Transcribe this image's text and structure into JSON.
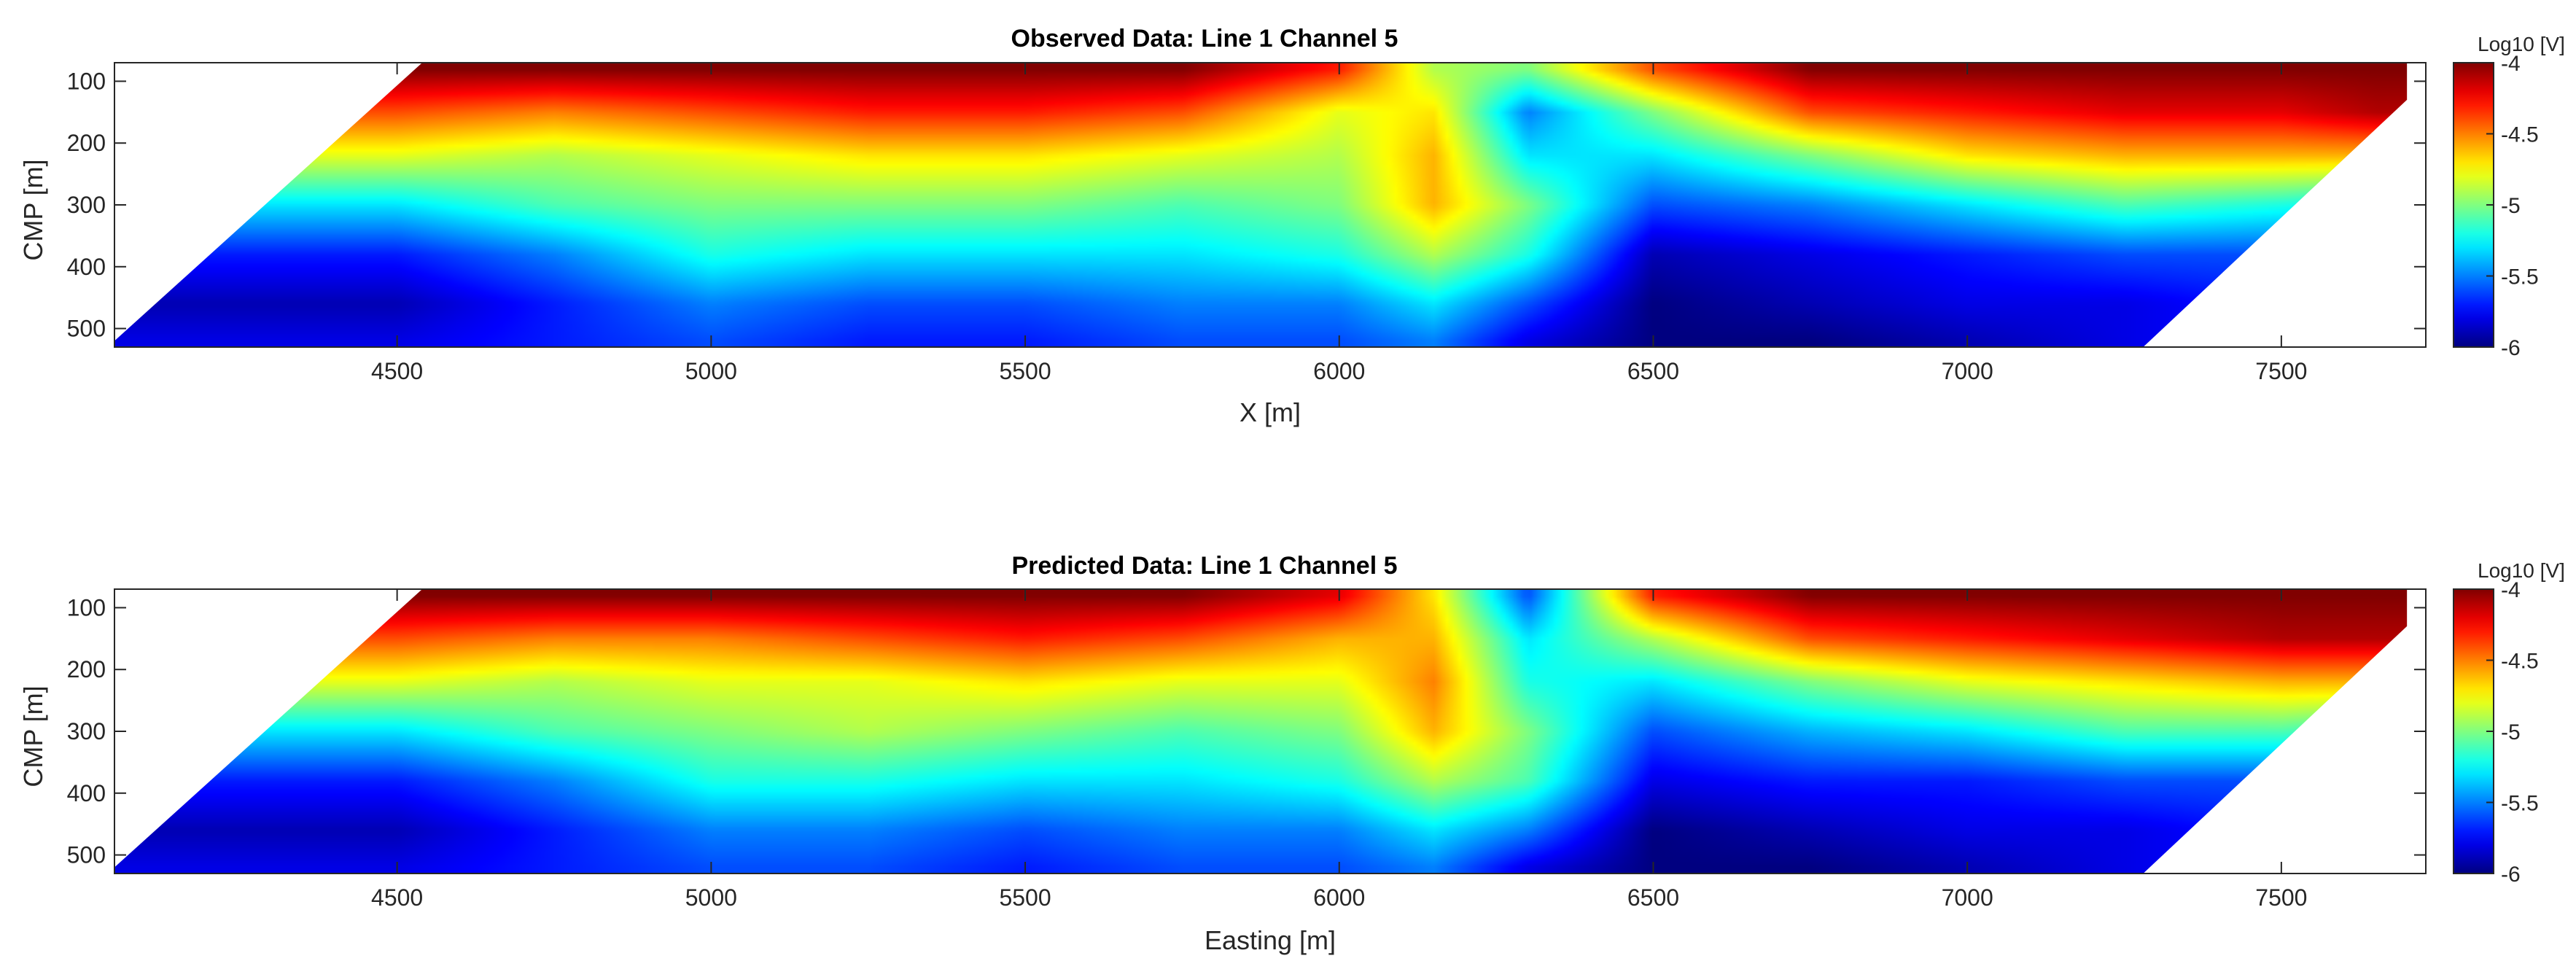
{
  "chart_data": [
    {
      "type": "heatmap",
      "title": "Observed Data: Line 1 Channel 5",
      "xlabel": "X [m]",
      "ylabel": "CMP [m]",
      "xlim": [
        4050,
        7730
      ],
      "ylim": [
        530,
        70
      ],
      "x_ticks": [
        "4500",
        "5000",
        "5500",
        "6000",
        "6500",
        "7000",
        "7500"
      ],
      "y_ticks": [
        "100",
        "200",
        "300",
        "400",
        "500"
      ],
      "colorbar": {
        "label": "Log10 [V]",
        "ticks": [
          "-4",
          "-4.5",
          "-5",
          "-5.5",
          "-6"
        ],
        "range": [
          -6,
          -4
        ],
        "colormap": "jet"
      },
      "x": [
        4500,
        4750,
        5000,
        5250,
        5500,
        5750,
        6000,
        6150,
        6300,
        6500,
        6750,
        7000,
        7250,
        7500,
        7650
      ],
      "y": [
        80,
        150,
        220,
        300,
        380,
        460,
        520
      ],
      "z": [
        [
          -4.0,
          -4.0,
          -4.0,
          -4.0,
          -4.0,
          -4.0,
          -4.3,
          -4.9,
          -5.0,
          -4.4,
          -4.0,
          -4.0,
          -4.0,
          -4.0,
          -4.0
        ],
        [
          -4.4,
          -4.5,
          -4.4,
          -4.3,
          -4.3,
          -4.4,
          -4.8,
          -4.7,
          -5.5,
          -5.0,
          -4.4,
          -4.3,
          -4.2,
          -4.2,
          -4.1
        ],
        [
          -4.8,
          -4.9,
          -4.8,
          -4.7,
          -4.7,
          -4.8,
          -4.9,
          -4.6,
          -5.3,
          -5.3,
          -5.0,
          -4.7,
          -4.6,
          -4.6,
          -4.6
        ],
        [
          -5.3,
          -5.1,
          -5.0,
          -5.0,
          -5.0,
          -5.1,
          -5.0,
          -4.6,
          -5.0,
          -5.6,
          -5.5,
          -5.3,
          -5.1,
          -5.2,
          -5.3
        ],
        [
          -5.7,
          -5.5,
          -5.2,
          -5.3,
          -5.3,
          -5.3,
          -5.2,
          -4.9,
          -5.2,
          -5.9,
          -5.8,
          -5.7,
          -5.6,
          -5.6,
          -5.5
        ],
        [
          -5.9,
          -5.7,
          -5.5,
          -5.6,
          -5.6,
          -5.5,
          -5.5,
          -5.3,
          -5.6,
          -6.0,
          -5.9,
          -5.8,
          -5.8,
          -5.7,
          -5.6
        ],
        [
          -5.8,
          -5.7,
          -5.6,
          -5.7,
          -5.7,
          -5.6,
          -5.6,
          -5.5,
          -5.8,
          -6.0,
          -6.0,
          -5.9,
          -5.8,
          -5.7,
          -5.6
        ]
      ]
    },
    {
      "type": "heatmap",
      "title": "Predicted Data: Line 1 Channel 5",
      "xlabel": "Easting [m]",
      "ylabel": "CMP [m]",
      "xlim": [
        4050,
        7730
      ],
      "ylim": [
        530,
        70
      ],
      "x_ticks": [
        "4500",
        "5000",
        "5500",
        "6000",
        "6500",
        "7000",
        "7500"
      ],
      "y_ticks": [
        "100",
        "200",
        "300",
        "400",
        "500"
      ],
      "colorbar": {
        "label": "Log10 [V]",
        "ticks": [
          "-4",
          "-4.5",
          "-5",
          "-5.5",
          "-6"
        ],
        "range": [
          -6,
          -4
        ],
        "colormap": "jet"
      },
      "x": [
        4500,
        4750,
        5000,
        5250,
        5500,
        5750,
        6000,
        6150,
        6300,
        6500,
        6750,
        7000,
        7250,
        7500,
        7650
      ],
      "y": [
        80,
        150,
        220,
        300,
        380,
        460,
        520
      ],
      "z": [
        [
          -4.0,
          -4.0,
          -4.0,
          -4.0,
          -4.0,
          -4.0,
          -4.2,
          -4.7,
          -5.6,
          -4.3,
          -4.0,
          -4.0,
          -4.0,
          -4.0,
          -4.0
        ],
        [
          -4.4,
          -4.5,
          -4.5,
          -4.4,
          -4.3,
          -4.4,
          -4.6,
          -4.6,
          -5.3,
          -4.9,
          -4.4,
          -4.3,
          -4.2,
          -4.1,
          -4.1
        ],
        [
          -4.8,
          -4.9,
          -4.8,
          -4.8,
          -4.7,
          -4.8,
          -4.8,
          -4.5,
          -5.2,
          -5.3,
          -5.0,
          -4.8,
          -4.7,
          -4.6,
          -4.6
        ],
        [
          -5.3,
          -5.1,
          -5.0,
          -4.9,
          -5.0,
          -5.1,
          -5.0,
          -4.6,
          -5.0,
          -5.6,
          -5.4,
          -5.3,
          -5.1,
          -5.1,
          -5.2
        ],
        [
          -5.7,
          -5.5,
          -5.2,
          -5.2,
          -5.3,
          -5.3,
          -5.2,
          -4.9,
          -5.1,
          -5.8,
          -5.7,
          -5.7,
          -5.6,
          -5.6,
          -5.5
        ],
        [
          -5.9,
          -5.7,
          -5.5,
          -5.5,
          -5.6,
          -5.5,
          -5.5,
          -5.3,
          -5.5,
          -6.0,
          -5.9,
          -5.8,
          -5.8,
          -5.7,
          -5.6
        ],
        [
          -5.8,
          -5.7,
          -5.6,
          -5.6,
          -5.7,
          -5.6,
          -5.6,
          -5.5,
          -5.8,
          -6.0,
          -6.0,
          -5.9,
          -5.8,
          -5.7,
          -5.6
        ]
      ]
    }
  ]
}
